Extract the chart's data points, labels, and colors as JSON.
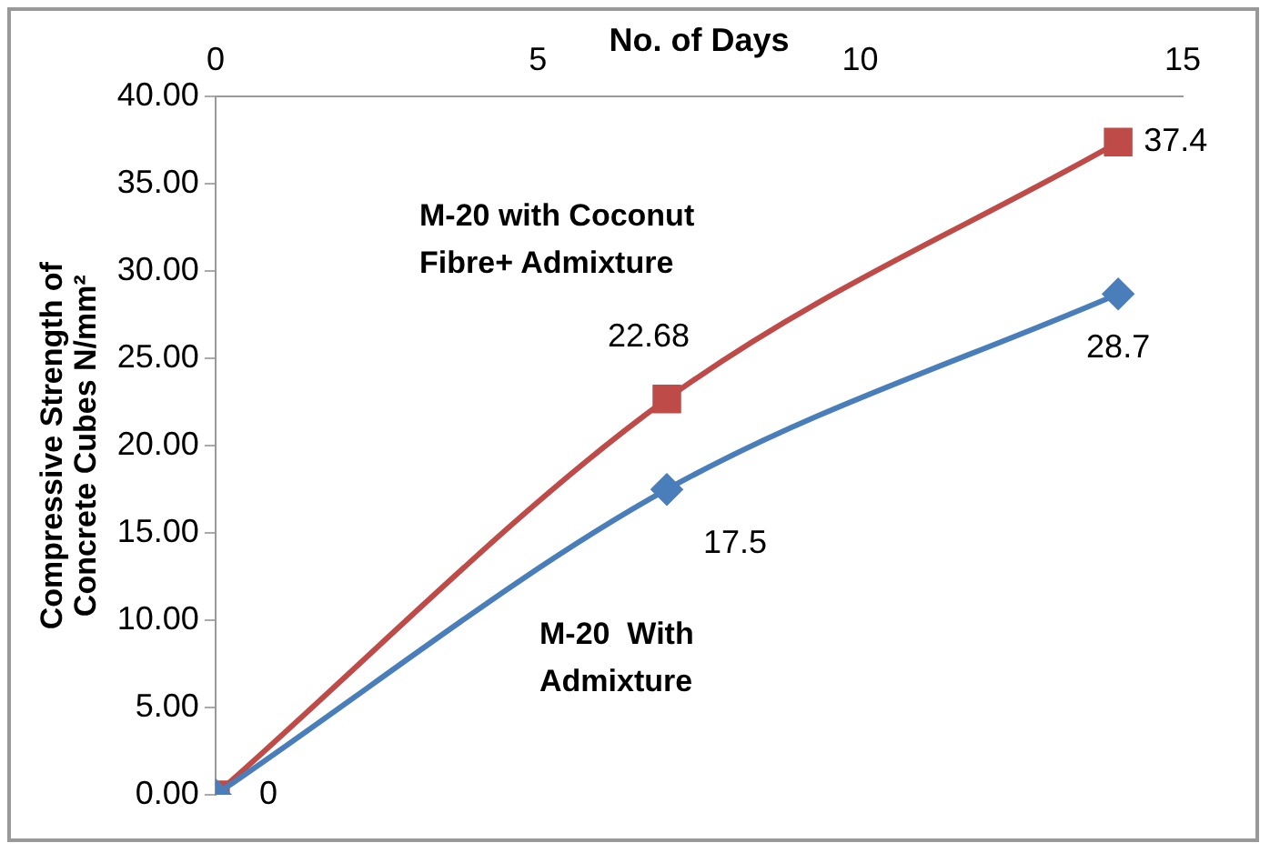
{
  "chart_data": {
    "type": "line",
    "xlabel": "No. of Days",
    "ylabel": "Compressive Strength of\nConcrete Cubes N/mm²",
    "x": [
      0,
      7,
      14
    ],
    "series": [
      {
        "name": "M-20  With Admixture",
        "color": "#4a7ebb",
        "values": [
          0,
          17.5,
          28.7
        ],
        "marker": "diamond",
        "value_labels": [
          null,
          "17.5",
          "28.7"
        ]
      },
      {
        "name": "M-20 with Coconut Fibre+ Admixture",
        "color": "#be4b48",
        "values": [
          0,
          22.68,
          37.4
        ],
        "marker": "square",
        "value_labels": [
          "0",
          "22.68",
          "37.4"
        ]
      }
    ],
    "xlim": [
      0,
      15
    ],
    "xticks": [
      0,
      5,
      10,
      15
    ],
    "ylim": [
      0,
      40
    ],
    "yticks": [
      {
        "value": 0,
        "label": "0.00"
      },
      {
        "value": 5,
        "label": "5.00"
      },
      {
        "value": 10,
        "label": "10.00"
      },
      {
        "value": 15,
        "label": "15.00"
      },
      {
        "value": 20,
        "label": "20.00"
      },
      {
        "value": 25,
        "label": "25.00"
      },
      {
        "value": 30,
        "label": "30.00"
      },
      {
        "value": 35,
        "label": "35.00"
      },
      {
        "value": 40,
        "label": "40.00"
      }
    ],
    "grid": false,
    "legend": false
  }
}
